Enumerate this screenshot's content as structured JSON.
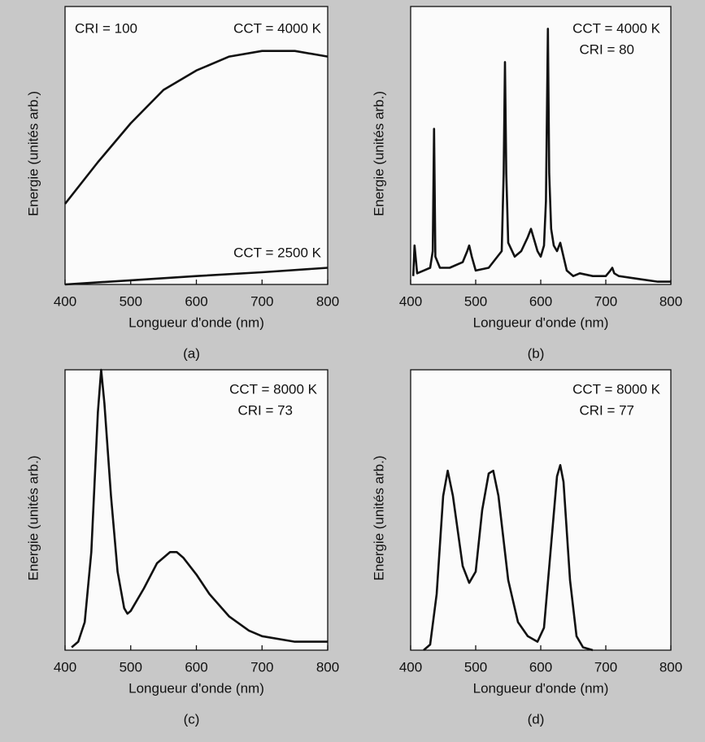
{
  "chart_data": [
    {
      "type": "line",
      "label": "(a)",
      "xlabel": "Longueur d'onde (nm)",
      "ylabel": "Energie (unités arb.)",
      "annotations": [
        "CRI = 100",
        "CCT = 4000 K",
        "CCT = 2500 K"
      ],
      "xlim": [
        400,
        800
      ],
      "xticks": [
        400,
        500,
        600,
        700,
        800
      ],
      "ylim": [
        0,
        100
      ],
      "color": "#111111",
      "series": [
        {
          "x": [
            400,
            450,
            500,
            550,
            600,
            650,
            700,
            750,
            800
          ],
          "values": [
            29,
            44,
            58,
            70,
            77,
            82,
            84,
            84,
            82
          ]
        },
        {
          "x": [
            400,
            500,
            600,
            700,
            800
          ],
          "values": [
            0,
            1.5,
            3,
            4.4,
            6
          ]
        }
      ]
    },
    {
      "type": "line",
      "label": "(b)",
      "xlabel": "Longueur d'onde (nm)",
      "ylabel": "Energie (unités arb.)",
      "annotations": [
        "CCT = 4000 K",
        "CRI = 80"
      ],
      "xlim": [
        400,
        800
      ],
      "xticks": [
        400,
        500,
        600,
        700,
        800
      ],
      "ylim": [
        0,
        100
      ],
      "color": "#111111",
      "series": [
        {
          "x": [
            404,
            406,
            410,
            420,
            430,
            434,
            436,
            438,
            445,
            460,
            480,
            487,
            490,
            494,
            500,
            520,
            540,
            543,
            545,
            547,
            550,
            560,
            570,
            580,
            585,
            590,
            595,
            600,
            605,
            608,
            611,
            613,
            616,
            620,
            625,
            630,
            635,
            640,
            650,
            660,
            680,
            700,
            707,
            710,
            713,
            720,
            750,
            780,
            800
          ],
          "values": [
            3,
            14,
            4,
            5,
            6,
            12,
            56,
            10,
            6,
            6,
            8,
            12,
            14,
            10,
            5,
            6,
            12,
            40,
            80,
            40,
            15,
            10,
            12,
            17,
            20,
            16,
            12,
            10,
            14,
            30,
            92,
            40,
            20,
            14,
            12,
            15,
            10,
            5,
            3,
            4,
            3,
            3,
            5,
            6,
            4,
            3,
            2,
            1,
            1
          ]
        }
      ]
    },
    {
      "type": "line",
      "label": "(c)",
      "xlabel": "Longueur d'onde (nm)",
      "ylabel": "Energie (unités arb.)",
      "annotations": [
        "CCT = 8000 K",
        "CRI = 73"
      ],
      "xlim": [
        400,
        800
      ],
      "xticks": [
        400,
        500,
        600,
        700,
        800
      ],
      "ylim": [
        0,
        100
      ],
      "color": "#111111",
      "series": [
        {
          "x": [
            410,
            420,
            430,
            440,
            450,
            455,
            460,
            470,
            480,
            490,
            495,
            500,
            520,
            540,
            560,
            570,
            580,
            600,
            620,
            650,
            680,
            700,
            750,
            800
          ],
          "values": [
            1,
            3,
            10,
            35,
            85,
            100,
            88,
            55,
            28,
            15,
            13,
            14,
            22,
            31,
            35,
            35,
            33,
            27,
            20,
            12,
            7,
            5,
            3,
            3
          ]
        }
      ]
    },
    {
      "type": "line",
      "label": "(d)",
      "xlabel": "Longueur d'onde (nm)",
      "ylabel": "Energie (unités arb.)",
      "annotations": [
        "CCT = 8000 K",
        "CRI = 77"
      ],
      "xlim": [
        400,
        800
      ],
      "xticks": [
        400,
        500,
        600,
        700,
        800
      ],
      "ylim": [
        0,
        100
      ],
      "color": "#111111",
      "series": [
        {
          "x": [
            420,
            430,
            440,
            450,
            457,
            465,
            480,
            490,
            500,
            510,
            520,
            527,
            535,
            550,
            565,
            580,
            595,
            605,
            615,
            625,
            630,
            635,
            645,
            655,
            665,
            680
          ],
          "values": [
            0,
            2,
            20,
            55,
            64,
            55,
            30,
            24,
            28,
            50,
            63,
            64,
            55,
            25,
            10,
            5,
            3,
            8,
            35,
            62,
            66,
            60,
            25,
            5,
            1,
            0
          ]
        }
      ]
    }
  ]
}
